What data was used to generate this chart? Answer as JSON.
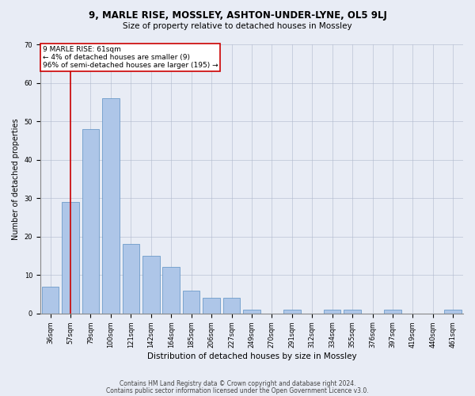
{
  "title1": "9, MARLE RISE, MOSSLEY, ASHTON-UNDER-LYNE, OL5 9LJ",
  "title2": "Size of property relative to detached houses in Mossley",
  "xlabel": "Distribution of detached houses by size in Mossley",
  "ylabel": "Number of detached properties",
  "categories": [
    "36sqm",
    "57sqm",
    "79sqm",
    "100sqm",
    "121sqm",
    "142sqm",
    "164sqm",
    "185sqm",
    "206sqm",
    "227sqm",
    "249sqm",
    "270sqm",
    "291sqm",
    "312sqm",
    "334sqm",
    "355sqm",
    "376sqm",
    "397sqm",
    "419sqm",
    "440sqm",
    "461sqm"
  ],
  "values": [
    7,
    29,
    48,
    56,
    18,
    15,
    12,
    6,
    4,
    4,
    1,
    0,
    1,
    0,
    1,
    1,
    0,
    1,
    0,
    0,
    1
  ],
  "bar_color": "#aec6e8",
  "bar_edge_color": "#5a8fc2",
  "annotation_line1": "9 MARLE RISE: 61sqm",
  "annotation_line2": "← 4% of detached houses are smaller (9)",
  "annotation_line3": "96% of semi-detached houses are larger (195) →",
  "vline_color": "#cc0000",
  "vline_x_index": 1,
  "annotation_box_color": "#ffffff",
  "annotation_box_edge": "#cc0000",
  "ylim": [
    0,
    70
  ],
  "yticks": [
    0,
    10,
    20,
    30,
    40,
    50,
    60,
    70
  ],
  "background_color": "#e8ecf5",
  "plot_bg_color": "#e8ecf5",
  "footer1": "Contains HM Land Registry data © Crown copyright and database right 2024.",
  "footer2": "Contains public sector information licensed under the Open Government Licence v3.0.",
  "title_fontsize": 8.5,
  "subtitle_fontsize": 7.5,
  "axis_label_fontsize": 7,
  "tick_fontsize": 6,
  "annotation_fontsize": 6.5,
  "footer_fontsize": 5.5
}
